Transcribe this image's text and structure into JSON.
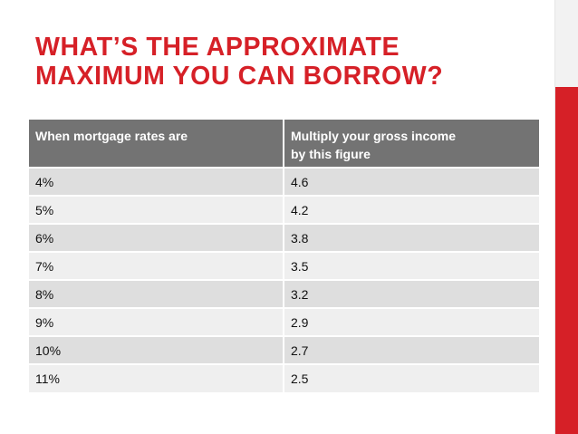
{
  "slide": {
    "title_lines": [
      "WHAT’S THE APPROXIMATE",
      "MAXIMUM YOU CAN BORROW?"
    ],
    "accent_color": "#d62027"
  },
  "table": {
    "headers": [
      "When mortgage rates are",
      "Multiply your gross income\nby this figure"
    ],
    "rows": [
      [
        "4%",
        "4.6"
      ],
      [
        "5%",
        "4.2"
      ],
      [
        "6%",
        "3.8"
      ],
      [
        "7%",
        "3.5"
      ],
      [
        "8%",
        "3.2"
      ],
      [
        "9%",
        "2.9"
      ],
      [
        "10%",
        "2.7"
      ],
      [
        "11%",
        "2.5"
      ]
    ]
  }
}
